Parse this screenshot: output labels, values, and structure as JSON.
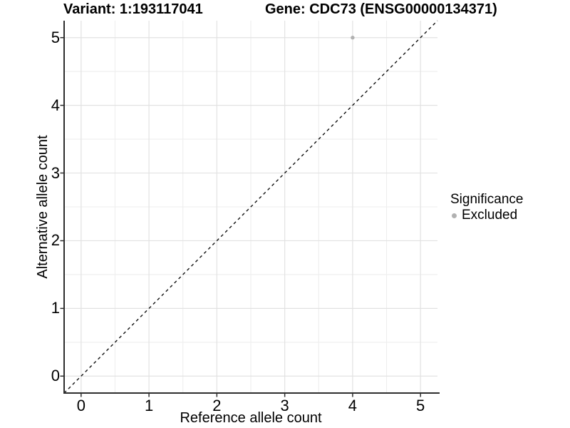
{
  "header": {
    "variant_title": "Variant: 1:193117041",
    "gene_title": "Gene: CDC73 (ENSG00000134371)"
  },
  "axes": {
    "x": {
      "title": "Reference allele count"
    },
    "y": {
      "title": "Alternative allele count"
    }
  },
  "legend": {
    "title": "Significance",
    "items": [
      {
        "label": "Excluded",
        "color": "#b1b1b1"
      }
    ]
  },
  "chart_data": {
    "type": "scatter",
    "title": "Variant: 1:193117041   Gene: CDC73 (ENSG00000134371)",
    "xlabel": "Reference allele count",
    "ylabel": "Alternative allele count",
    "xlim": [
      -0.25,
      5.25
    ],
    "ylim": [
      -0.25,
      5.25
    ],
    "x_ticks": [
      0,
      1,
      2,
      3,
      4,
      5
    ],
    "y_ticks": [
      0,
      1,
      2,
      3,
      4,
      5
    ],
    "minor_ticks": [
      0.5,
      1.5,
      2.5,
      3.5,
      4.5
    ],
    "grid": true,
    "legend_position": "right-middle",
    "series": [
      {
        "name": "Excluded",
        "marker": "circle",
        "color": "#b1b1b1",
        "points": [
          [
            4,
            5
          ]
        ]
      }
    ],
    "reference_line": {
      "equation": "y = x",
      "style": "dashed",
      "color": "#111111"
    }
  },
  "colors": {
    "background": "#ffffff",
    "axis_line": "#2e2e2e",
    "tick_mark": "#2e2e2e",
    "grid_major": "#e2e2e2",
    "grid_minor": "#eeeeee",
    "text": "#000000",
    "excluded_point": "#b1b1b1"
  }
}
